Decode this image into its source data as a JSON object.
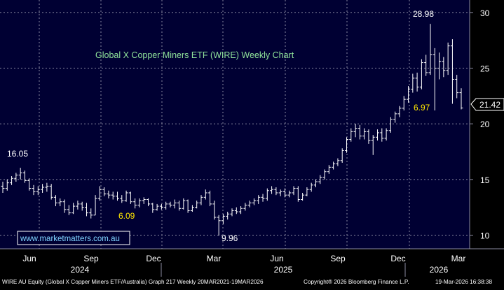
{
  "chart_data": {
    "type": "ohlc",
    "title": "Global X Copper Miners ETF (WIRE) Weekly Chart",
    "ylim": [
      9,
      31
    ],
    "yticks": [
      10,
      15,
      20,
      25,
      30
    ],
    "grid": true,
    "x_month_labels": [
      "Jun",
      "Sep",
      "Dec",
      "Mar",
      "Jun",
      "Sep",
      "Dec",
      "Mar"
    ],
    "x_year_labels": [
      "2024",
      "2025",
      "2026"
    ],
    "last_price": "21.42",
    "annotations": {
      "high_2024": "16.05",
      "low_2024": "6.09",
      "low_2025": "9.96",
      "high_2026": "28.98",
      "mid_2026": "6.97"
    },
    "series": [
      {
        "o": 14.4,
        "h": 14.8,
        "l": 13.8,
        "c": 14.2
      },
      {
        "o": 14.2,
        "h": 15.0,
        "l": 14.0,
        "c": 14.7
      },
      {
        "o": 14.7,
        "h": 15.3,
        "l": 14.5,
        "c": 15.1
      },
      {
        "o": 15.1,
        "h": 15.6,
        "l": 14.8,
        "c": 15.4
      },
      {
        "o": 15.4,
        "h": 16.05,
        "l": 15.0,
        "c": 15.6
      },
      {
        "o": 15.6,
        "h": 15.8,
        "l": 14.7,
        "c": 14.9
      },
      {
        "o": 14.9,
        "h": 15.1,
        "l": 14.0,
        "c": 14.2
      },
      {
        "o": 14.2,
        "h": 14.5,
        "l": 13.6,
        "c": 13.9
      },
      {
        "o": 13.9,
        "h": 14.4,
        "l": 13.6,
        "c": 14.1
      },
      {
        "o": 14.1,
        "h": 14.6,
        "l": 13.8,
        "c": 14.3
      },
      {
        "o": 14.3,
        "h": 14.7,
        "l": 13.9,
        "c": 14.4
      },
      {
        "o": 14.4,
        "h": 14.6,
        "l": 13.2,
        "c": 13.4
      },
      {
        "o": 13.4,
        "h": 13.6,
        "l": 12.6,
        "c": 12.9
      },
      {
        "o": 12.9,
        "h": 13.3,
        "l": 12.6,
        "c": 13.0
      },
      {
        "o": 13.0,
        "h": 13.2,
        "l": 12.0,
        "c": 12.3
      },
      {
        "o": 12.3,
        "h": 12.7,
        "l": 11.8,
        "c": 12.0
      },
      {
        "o": 12.0,
        "h": 12.9,
        "l": 11.9,
        "c": 12.6
      },
      {
        "o": 12.6,
        "h": 13.1,
        "l": 12.3,
        "c": 12.8
      },
      {
        "o": 12.8,
        "h": 13.0,
        "l": 12.2,
        "c": 12.5
      },
      {
        "o": 12.5,
        "h": 12.9,
        "l": 11.7,
        "c": 12.0
      },
      {
        "o": 12.0,
        "h": 12.4,
        "l": 11.5,
        "c": 11.8
      },
      {
        "o": 11.8,
        "h": 13.6,
        "l": 11.8,
        "c": 13.3
      },
      {
        "o": 13.3,
        "h": 14.4,
        "l": 13.1,
        "c": 14.1
      },
      {
        "o": 14.1,
        "h": 14.3,
        "l": 13.5,
        "c": 13.7
      },
      {
        "o": 13.7,
        "h": 14.0,
        "l": 13.3,
        "c": 13.6
      },
      {
        "o": 13.6,
        "h": 13.9,
        "l": 13.2,
        "c": 13.5
      },
      {
        "o": 13.5,
        "h": 13.9,
        "l": 13.1,
        "c": 13.3
      },
      {
        "o": 13.3,
        "h": 13.6,
        "l": 12.9,
        "c": 13.1
      },
      {
        "o": 13.1,
        "h": 14.0,
        "l": 13.0,
        "c": 13.8
      },
      {
        "o": 13.8,
        "h": 13.9,
        "l": 12.8,
        "c": 13.0
      },
      {
        "o": 13.0,
        "h": 13.3,
        "l": 12.4,
        "c": 12.7
      },
      {
        "o": 12.7,
        "h": 13.3,
        "l": 12.5,
        "c": 13.1
      },
      {
        "o": 13.1,
        "h": 13.4,
        "l": 12.8,
        "c": 13.2
      },
      {
        "o": 13.2,
        "h": 13.3,
        "l": 12.6,
        "c": 12.8
      },
      {
        "o": 12.8,
        "h": 12.9,
        "l": 12.0,
        "c": 12.3
      },
      {
        "o": 12.3,
        "h": 12.8,
        "l": 12.2,
        "c": 12.6
      },
      {
        "o": 12.6,
        "h": 12.8,
        "l": 12.3,
        "c": 12.5
      },
      {
        "o": 12.5,
        "h": 13.0,
        "l": 12.3,
        "c": 12.8
      },
      {
        "o": 12.8,
        "h": 13.0,
        "l": 12.5,
        "c": 12.7
      },
      {
        "o": 12.7,
        "h": 13.2,
        "l": 12.4,
        "c": 12.9
      },
      {
        "o": 12.9,
        "h": 13.1,
        "l": 12.2,
        "c": 12.4
      },
      {
        "o": 12.4,
        "h": 13.3,
        "l": 12.3,
        "c": 13.1
      },
      {
        "o": 13.1,
        "h": 13.2,
        "l": 12.0,
        "c": 12.2
      },
      {
        "o": 12.2,
        "h": 12.7,
        "l": 12.1,
        "c": 12.5
      },
      {
        "o": 12.5,
        "h": 13.1,
        "l": 12.4,
        "c": 12.9
      },
      {
        "o": 12.9,
        "h": 13.6,
        "l": 12.7,
        "c": 13.4
      },
      {
        "o": 13.4,
        "h": 14.1,
        "l": 13.2,
        "c": 13.8
      },
      {
        "o": 13.8,
        "h": 14.0,
        "l": 12.6,
        "c": 12.8
      },
      {
        "o": 12.8,
        "h": 13.1,
        "l": 11.4,
        "c": 11.6
      },
      {
        "o": 11.6,
        "h": 11.8,
        "l": 9.96,
        "c": 11.3
      },
      {
        "o": 11.3,
        "h": 11.9,
        "l": 11.0,
        "c": 11.7
      },
      {
        "o": 11.7,
        "h": 12.1,
        "l": 11.4,
        "c": 11.9
      },
      {
        "o": 11.9,
        "h": 12.4,
        "l": 11.7,
        "c": 12.2
      },
      {
        "o": 12.2,
        "h": 12.5,
        "l": 11.9,
        "c": 12.1
      },
      {
        "o": 12.1,
        "h": 12.6,
        "l": 11.9,
        "c": 12.4
      },
      {
        "o": 12.4,
        "h": 12.9,
        "l": 12.2,
        "c": 12.7
      },
      {
        "o": 12.7,
        "h": 13.1,
        "l": 12.5,
        "c": 12.9
      },
      {
        "o": 12.9,
        "h": 13.3,
        "l": 12.7,
        "c": 13.1
      },
      {
        "o": 13.1,
        "h": 13.6,
        "l": 12.8,
        "c": 13.4
      },
      {
        "o": 13.4,
        "h": 13.7,
        "l": 13.0,
        "c": 13.3
      },
      {
        "o": 13.3,
        "h": 14.2,
        "l": 13.1,
        "c": 14.0
      },
      {
        "o": 14.0,
        "h": 14.4,
        "l": 13.7,
        "c": 14.1
      },
      {
        "o": 14.1,
        "h": 14.3,
        "l": 13.6,
        "c": 13.8
      },
      {
        "o": 13.8,
        "h": 14.1,
        "l": 13.5,
        "c": 13.9
      },
      {
        "o": 13.9,
        "h": 14.2,
        "l": 13.4,
        "c": 13.6
      },
      {
        "o": 13.6,
        "h": 14.0,
        "l": 13.4,
        "c": 13.8
      },
      {
        "o": 13.8,
        "h": 14.4,
        "l": 13.6,
        "c": 14.2
      },
      {
        "o": 14.2,
        "h": 14.4,
        "l": 13.0,
        "c": 13.2
      },
      {
        "o": 13.2,
        "h": 13.8,
        "l": 13.1,
        "c": 13.6
      },
      {
        "o": 13.6,
        "h": 14.3,
        "l": 13.5,
        "c": 14.1
      },
      {
        "o": 14.1,
        "h": 14.7,
        "l": 13.9,
        "c": 14.5
      },
      {
        "o": 14.5,
        "h": 15.0,
        "l": 14.3,
        "c": 14.8
      },
      {
        "o": 14.8,
        "h": 15.4,
        "l": 14.6,
        "c": 15.2
      },
      {
        "o": 15.2,
        "h": 15.9,
        "l": 15.0,
        "c": 15.7
      },
      {
        "o": 15.7,
        "h": 16.3,
        "l": 15.5,
        "c": 16.1
      },
      {
        "o": 16.1,
        "h": 16.6,
        "l": 15.9,
        "c": 16.4
      },
      {
        "o": 16.4,
        "h": 16.9,
        "l": 16.2,
        "c": 16.7
      },
      {
        "o": 16.7,
        "h": 17.8,
        "l": 16.5,
        "c": 17.6
      },
      {
        "o": 17.6,
        "h": 18.8,
        "l": 17.4,
        "c": 18.6
      },
      {
        "o": 18.6,
        "h": 19.6,
        "l": 18.4,
        "c": 19.3
      },
      {
        "o": 19.3,
        "h": 20.0,
        "l": 18.8,
        "c": 19.6
      },
      {
        "o": 19.6,
        "h": 19.9,
        "l": 18.6,
        "c": 18.9
      },
      {
        "o": 18.9,
        "h": 19.6,
        "l": 18.6,
        "c": 19.3
      },
      {
        "o": 19.3,
        "h": 19.5,
        "l": 18.2,
        "c": 18.5
      },
      {
        "o": 18.5,
        "h": 19.0,
        "l": 17.2,
        "c": 18.8
      },
      {
        "o": 18.8,
        "h": 19.5,
        "l": 18.5,
        "c": 19.2
      },
      {
        "o": 19.2,
        "h": 19.6,
        "l": 18.4,
        "c": 18.7
      },
      {
        "o": 18.7,
        "h": 19.6,
        "l": 18.5,
        "c": 19.4
      },
      {
        "o": 19.4,
        "h": 20.6,
        "l": 19.2,
        "c": 20.4
      },
      {
        "o": 20.4,
        "h": 21.1,
        "l": 20.1,
        "c": 20.9
      },
      {
        "o": 20.9,
        "h": 21.6,
        "l": 20.6,
        "c": 21.4
      },
      {
        "o": 21.4,
        "h": 22.5,
        "l": 21.2,
        "c": 22.2
      },
      {
        "o": 22.2,
        "h": 23.4,
        "l": 21.9,
        "c": 23.1
      },
      {
        "o": 23.1,
        "h": 24.5,
        "l": 22.8,
        "c": 24.1
      },
      {
        "o": 24.1,
        "h": 24.6,
        "l": 22.9,
        "c": 23.3
      },
      {
        "o": 23.3,
        "h": 25.8,
        "l": 23.1,
        "c": 25.5
      },
      {
        "o": 25.5,
        "h": 26.2,
        "l": 24.3,
        "c": 24.6
      },
      {
        "o": 24.6,
        "h": 28.98,
        "l": 24.4,
        "c": 26.2
      },
      {
        "o": 26.2,
        "h": 26.8,
        "l": 21.2,
        "c": 25.0
      },
      {
        "o": 25.0,
        "h": 26.4,
        "l": 24.0,
        "c": 25.6
      },
      {
        "o": 25.6,
        "h": 26.0,
        "l": 24.2,
        "c": 24.8
      },
      {
        "o": 24.8,
        "h": 27.3,
        "l": 24.4,
        "c": 27.0
      },
      {
        "o": 27.0,
        "h": 27.6,
        "l": 21.8,
        "c": 24.0
      },
      {
        "o": 24.0,
        "h": 24.4,
        "l": 22.3,
        "c": 22.8
      },
      {
        "o": 22.8,
        "h": 23.2,
        "l": 21.3,
        "c": 21.42
      }
    ]
  },
  "footer": {
    "left_text": "WIRE AU Equity (Global X Copper Miners ETF/Australia) Graph 217 Weekly 20MAR2021-19MAR2026",
    "copyright_text": "Copyright® 2026 Bloomberg Finance L.P.",
    "timestamp": "19-Mar-2026 16:38:38"
  },
  "watermark": "www.marketmatters.com.au",
  "colors": {
    "background": "#000000",
    "plot_background": "#000033",
    "grid": "#8a8aa0",
    "bars": "#ffffff",
    "axis_text": "#ffffff",
    "title": "#8fe29a",
    "annotation_yellow": "#ffe600",
    "watermark_text": "#7fd3ff",
    "watermark_border": "#ffffff",
    "label_box_bg": "#000000"
  }
}
